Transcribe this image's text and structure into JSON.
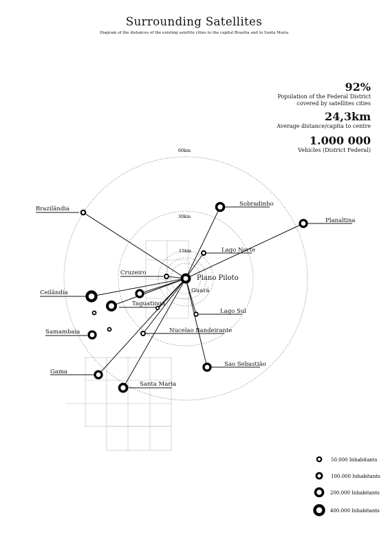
{
  "title": "Surrounding Satellites",
  "subtitle": "Diagram of the distances of the existing satellite cities to the capital Brasília and to Santa Maria",
  "stats": [
    {
      "value": "92%",
      "caption": [
        "Population of the Federal District",
        "covered by satellites cities"
      ]
    },
    {
      "value": "24,3km",
      "caption": [
        "Average distance/capita to centre"
      ]
    },
    {
      "value": "1.000 000",
      "caption": [
        "Vehicles (District Federal)"
      ]
    }
  ],
  "rings": [
    {
      "label": "60km"
    },
    {
      "label": "30km"
    },
    {
      "label": "15km"
    }
  ],
  "center": {
    "label": "Plano Piloto"
  },
  "cities": [
    {
      "name": "Brazilândia"
    },
    {
      "name": "Sobradinho"
    },
    {
      "name": "Planaltina"
    },
    {
      "name": "Lago Norte"
    },
    {
      "name": "Cruzeiro"
    },
    {
      "name": "Guará"
    },
    {
      "name": "Ceilândia"
    },
    {
      "name": "Taguatinga"
    },
    {
      "name": "Lago Sul"
    },
    {
      "name": "Samambaia"
    },
    {
      "name": "Nucelao Bandeirante"
    },
    {
      "name": "Gama"
    },
    {
      "name": "Santa Maria"
    },
    {
      "name": "Sao Sebastião"
    }
  ],
  "legend": [
    {
      "label": "50.000 Inhabitants",
      "inhabitants": 50000
    },
    {
      "label": "100.000 Inhabitants",
      "inhabitants": 100000
    },
    {
      "label": "200.000 Inhabitants",
      "inhabitants": 200000
    },
    {
      "label": "400.000 Inhabitants",
      "inhabitants": 400000
    }
  ]
}
